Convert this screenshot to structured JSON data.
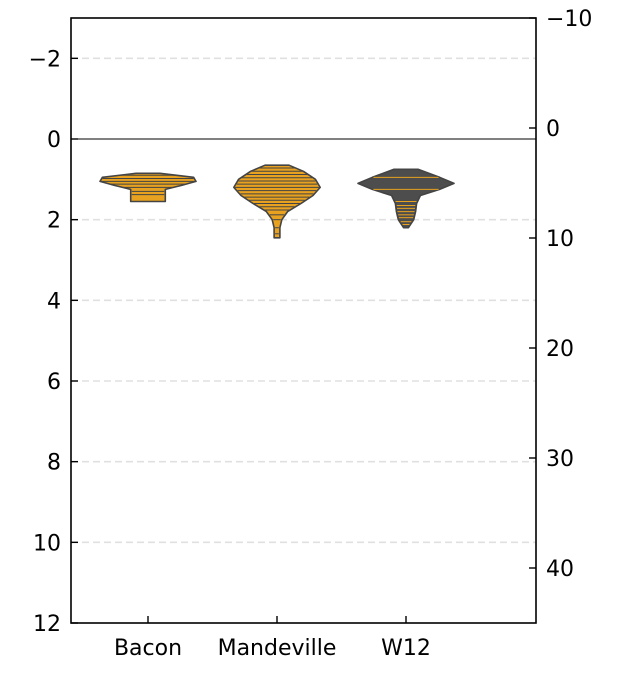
{
  "chart_data": {
    "type": "violin",
    "title": "",
    "xlabel": "",
    "ylabel": "",
    "categories": [
      "Bacon",
      "Mandeville",
      "W12"
    ],
    "y_axis_left": {
      "range": [
        12,
        -3
      ],
      "inverted": true,
      "ticks": [
        -2,
        0,
        2,
        4,
        6,
        8,
        10,
        12
      ],
      "tick_labels": [
        "−2",
        "0",
        "2",
        "4",
        "6",
        "8",
        "10",
        "12"
      ]
    },
    "y_axis_right": {
      "range": [
        45,
        -10
      ],
      "inverted": true,
      "ticks": [
        -10,
        0,
        10,
        20,
        30,
        40
      ],
      "tick_labels": [
        "−10",
        "0",
        "10",
        "20",
        "30",
        "40"
      ]
    },
    "reference_line_y": 0,
    "grid": {
      "horizontal": true,
      "style": "dashed"
    },
    "violins": [
      {
        "category": "Bacon",
        "fill": "#e8a21f",
        "profile": [
          [
            0.85,
            0.25
          ],
          [
            0.95,
            0.95
          ],
          [
            1.05,
            1.0
          ],
          [
            1.15,
            0.7
          ],
          [
            1.25,
            0.36
          ],
          [
            1.4,
            0.36
          ],
          [
            1.55,
            0.36
          ]
        ],
        "lines": [
          0.9,
          0.98,
          1.05,
          1.12,
          1.2,
          1.3,
          1.38
        ]
      },
      {
        "category": "Mandeville",
        "fill": "#e8a21f",
        "profile": [
          [
            0.65,
            0.25
          ],
          [
            0.8,
            0.55
          ],
          [
            1.0,
            0.8
          ],
          [
            1.2,
            0.9
          ],
          [
            1.4,
            0.75
          ],
          [
            1.6,
            0.5
          ],
          [
            1.8,
            0.22
          ],
          [
            2.0,
            0.1
          ],
          [
            2.2,
            0.06
          ],
          [
            2.45,
            0.06
          ]
        ],
        "lines": [
          0.72,
          0.8,
          0.88,
          0.96,
          1.04,
          1.12,
          1.2,
          1.28,
          1.36,
          1.44,
          1.52,
          1.6,
          1.68,
          1.76,
          1.88,
          2.0,
          2.2,
          2.35
        ]
      },
      {
        "category": "W12",
        "fill": "#4d4d4d",
        "profile": [
          [
            0.75,
            0.25
          ],
          [
            0.95,
            0.7
          ],
          [
            1.1,
            1.0
          ],
          [
            1.25,
            0.7
          ],
          [
            1.4,
            0.3
          ],
          [
            1.6,
            0.22
          ],
          [
            1.8,
            0.2
          ],
          [
            2.0,
            0.16
          ],
          [
            2.2,
            0.05
          ]
        ],
        "lines": [
          0.95,
          1.25,
          1.55,
          1.65,
          1.72,
          1.8,
          1.88,
          1.95,
          2.05,
          2.12
        ]
      }
    ]
  }
}
